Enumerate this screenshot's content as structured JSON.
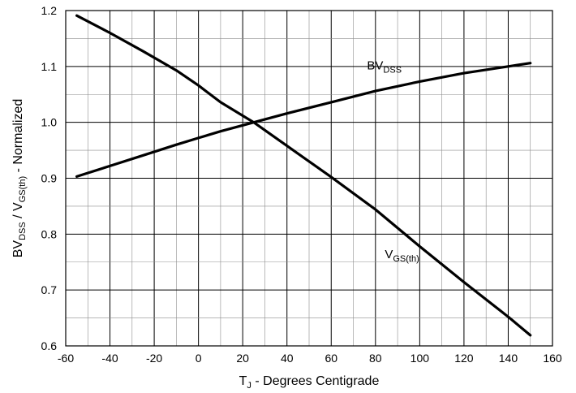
{
  "chart_data": {
    "type": "line",
    "x_axis": {
      "title_main": "T",
      "title_sub": "J",
      "title_rest": " - Degrees Centigrade",
      "range": [
        -60,
        160
      ],
      "ticks": [
        "-60",
        "-40",
        "-20",
        "0",
        "20",
        "40",
        "60",
        "80",
        "100",
        "120",
        "140",
        "160"
      ],
      "minor_step": 10
    },
    "y_axis": {
      "title_parts": [
        {
          "text": "BV",
          "sub": false
        },
        {
          "text": "DSS",
          "sub": true
        },
        {
          "text": " / V",
          "sub": false
        },
        {
          "text": "GS(th)",
          "sub": true
        },
        {
          "text": " - Normalized",
          "sub": false
        }
      ],
      "range": [
        0.6,
        1.2
      ],
      "ticks": [
        "0.6",
        "0.7",
        "0.8",
        "0.9",
        "1.0",
        "1.1",
        "1.2"
      ],
      "minor_step": 0.05
    },
    "grid": true,
    "series": [
      {
        "name_main": "BV",
        "name_sub": "DSS",
        "label_anchor": {
          "x": 84,
          "y": 1.095
        },
        "x": [
          -55,
          -40,
          -25,
          -10,
          0,
          10,
          25,
          40,
          60,
          80,
          100,
          120,
          140,
          150
        ],
        "y": [
          0.903,
          0.922,
          0.941,
          0.96,
          0.972,
          0.984,
          1.0,
          1.016,
          1.036,
          1.056,
          1.073,
          1.088,
          1.1,
          1.106
        ]
      },
      {
        "name_main": "V",
        "name_sub": "GS(th)",
        "label_anchor": {
          "x": 92,
          "y": 0.757
        },
        "x": [
          -55,
          -40,
          -25,
          -10,
          0,
          10,
          25,
          40,
          60,
          80,
          100,
          120,
          140,
          150
        ],
        "y": [
          1.191,
          1.16,
          1.127,
          1.093,
          1.066,
          1.036,
          1.0,
          0.958,
          0.902,
          0.844,
          0.778,
          0.714,
          0.652,
          0.619
        ]
      }
    ]
  }
}
